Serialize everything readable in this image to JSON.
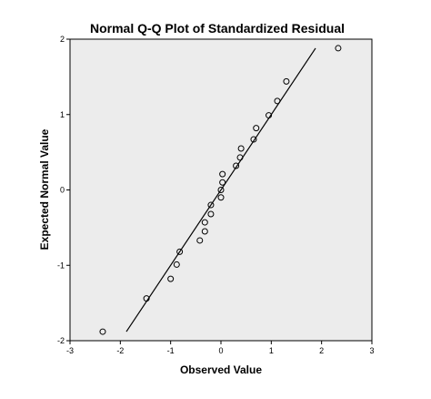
{
  "colors": {
    "plot_background": "#ececec",
    "frame": "#000000",
    "point_stroke": "#000000",
    "line": "#000000"
  },
  "chart_data": {
    "type": "scatter",
    "title": "Normal Q-Q Plot of Standardized Residual",
    "xlabel": "Observed Value",
    "ylabel": "Expected Normal Value",
    "xlim": [
      -3,
      3
    ],
    "ylim": [
      -2,
      2
    ],
    "xticks": [
      -3,
      -2,
      -1,
      0,
      1,
      2,
      3
    ],
    "yticks": [
      -2,
      -1,
      0,
      1,
      2
    ],
    "grid": false,
    "legend": "none",
    "points": [
      {
        "x": -2.35,
        "y": -1.88
      },
      {
        "x": -1.48,
        "y": -1.44
      },
      {
        "x": -1.0,
        "y": -1.18
      },
      {
        "x": -0.88,
        "y": -0.99
      },
      {
        "x": -0.82,
        "y": -0.82
      },
      {
        "x": -0.42,
        "y": -0.67
      },
      {
        "x": -0.32,
        "y": -0.55
      },
      {
        "x": -0.32,
        "y": -0.43
      },
      {
        "x": -0.2,
        "y": -0.32
      },
      {
        "x": -0.2,
        "y": -0.2
      },
      {
        "x": 0.0,
        "y": -0.1
      },
      {
        "x": 0.0,
        "y": 0.0
      },
      {
        "x": 0.03,
        "y": 0.1
      },
      {
        "x": 0.03,
        "y": 0.21
      },
      {
        "x": 0.3,
        "y": 0.32
      },
      {
        "x": 0.38,
        "y": 0.43
      },
      {
        "x": 0.4,
        "y": 0.55
      },
      {
        "x": 0.65,
        "y": 0.67
      },
      {
        "x": 0.7,
        "y": 0.82
      },
      {
        "x": 0.95,
        "y": 0.99
      },
      {
        "x": 1.12,
        "y": 1.18
      },
      {
        "x": 1.3,
        "y": 1.44
      },
      {
        "x": 2.33,
        "y": 1.88
      }
    ],
    "reference_line": {
      "x": [
        -1.88,
        1.88
      ],
      "y": [
        -1.88,
        1.88
      ]
    }
  }
}
